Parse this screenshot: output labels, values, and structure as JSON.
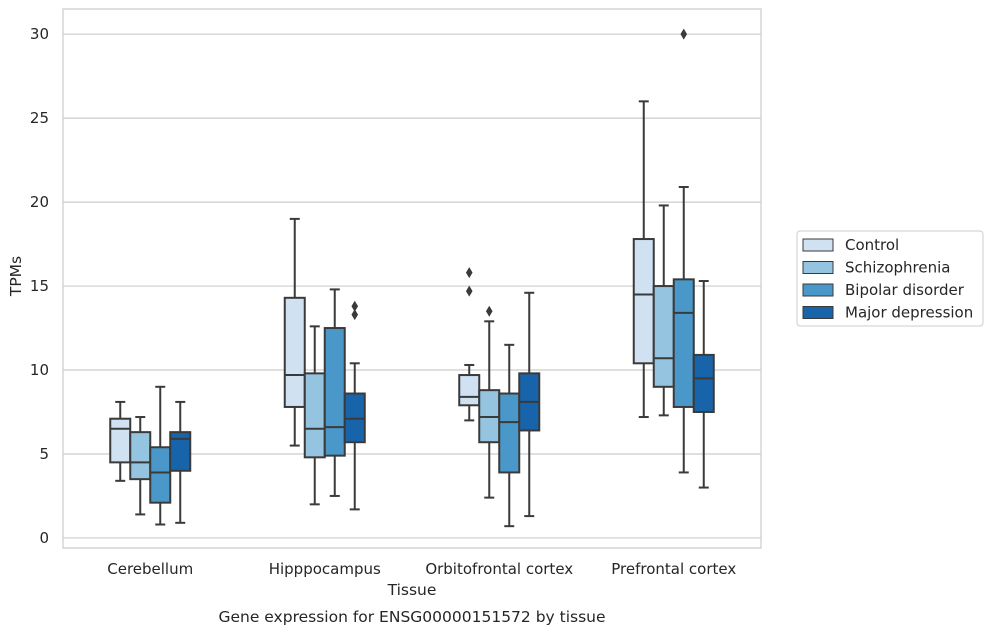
{
  "caption": "Gene expression for ENSG00000151572 by tissue",
  "chart_data": {
    "type": "box",
    "xlabel": "Tissue",
    "ylabel": "TPMs",
    "ylim": [
      -0.6,
      31.5
    ],
    "yticks": [
      0,
      5,
      10,
      15,
      20,
      25,
      30
    ],
    "grid": "horizontal",
    "legend_position": "right",
    "categories": [
      "Cerebellum",
      "Hipppocampus",
      "Orbitofrontal cortex",
      "Prefrontal cortex"
    ],
    "series": [
      {
        "name": "Control",
        "color": "#d0e1f2",
        "boxes": [
          {
            "whisker_low": 3.4,
            "q1": 4.5,
            "median": 6.5,
            "q3": 7.1,
            "whisker_high": 8.1,
            "outliers": []
          },
          {
            "whisker_low": 5.5,
            "q1": 7.8,
            "median": 9.7,
            "q3": 14.3,
            "whisker_high": 19.0,
            "outliers": []
          },
          {
            "whisker_low": 7.0,
            "q1": 7.9,
            "median": 8.4,
            "q3": 9.7,
            "whisker_high": 10.3,
            "outliers": [
              14.7,
              15.8
            ]
          },
          {
            "whisker_low": 7.2,
            "q1": 10.4,
            "median": 14.5,
            "q3": 17.8,
            "whisker_high": 26.0,
            "outliers": []
          }
        ]
      },
      {
        "name": "Schizophrenia",
        "color": "#94c4df",
        "boxes": [
          {
            "whisker_low": 1.4,
            "q1": 3.5,
            "median": 4.5,
            "q3": 6.3,
            "whisker_high": 7.2,
            "outliers": []
          },
          {
            "whisker_low": 2.0,
            "q1": 4.8,
            "median": 6.5,
            "q3": 9.8,
            "whisker_high": 12.6,
            "outliers": []
          },
          {
            "whisker_low": 2.4,
            "q1": 5.7,
            "median": 7.2,
            "q3": 8.8,
            "whisker_high": 12.9,
            "outliers": [
              13.5
            ]
          },
          {
            "whisker_low": 7.3,
            "q1": 9.0,
            "median": 10.7,
            "q3": 15.0,
            "whisker_high": 19.8,
            "outliers": []
          }
        ]
      },
      {
        "name": "Bipolar disorder",
        "color": "#4a98c9",
        "boxes": [
          {
            "whisker_low": 0.8,
            "q1": 2.1,
            "median": 3.9,
            "q3": 5.4,
            "whisker_high": 9.0,
            "outliers": []
          },
          {
            "whisker_low": 2.5,
            "q1": 4.9,
            "median": 6.6,
            "q3": 12.5,
            "whisker_high": 14.8,
            "outliers": []
          },
          {
            "whisker_low": 0.7,
            "q1": 3.9,
            "median": 6.9,
            "q3": 8.6,
            "whisker_high": 11.5,
            "outliers": []
          },
          {
            "whisker_low": 3.9,
            "q1": 7.8,
            "median": 13.4,
            "q3": 15.4,
            "whisker_high": 20.9,
            "outliers": [
              30.0
            ]
          }
        ]
      },
      {
        "name": "Major depression",
        "color": "#1764ab",
        "boxes": [
          {
            "whisker_low": 0.9,
            "q1": 4.0,
            "median": 5.9,
            "q3": 6.3,
            "whisker_high": 8.1,
            "outliers": []
          },
          {
            "whisker_low": 1.7,
            "q1": 5.7,
            "median": 7.1,
            "q3": 8.6,
            "whisker_high": 10.4,
            "outliers": [
              13.3,
              13.8
            ]
          },
          {
            "whisker_low": 1.3,
            "q1": 6.4,
            "median": 8.1,
            "q3": 9.8,
            "whisker_high": 14.6,
            "outliers": []
          },
          {
            "whisker_low": 3.0,
            "q1": 7.5,
            "median": 9.5,
            "q3": 10.9,
            "whisker_high": 15.3,
            "outliers": []
          }
        ]
      }
    ]
  }
}
